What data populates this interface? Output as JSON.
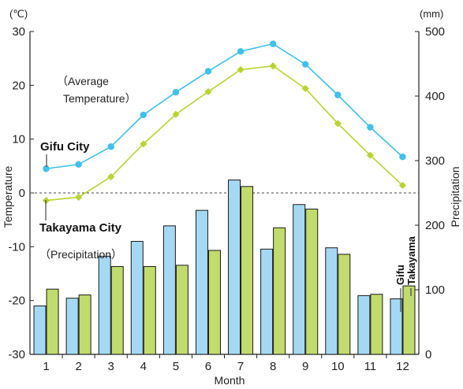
{
  "chart_data": {
    "type": "bar+line",
    "title": "",
    "x": [
      1,
      2,
      3,
      4,
      5,
      6,
      7,
      8,
      9,
      10,
      11,
      12
    ],
    "xlabel": "Month",
    "y_left": {
      "label": "Temperature",
      "unit": "(℃)",
      "range": [
        -30,
        30
      ],
      "ticks": [
        -30,
        -20,
        -10,
        0,
        10,
        20,
        30
      ]
    },
    "y_right": {
      "label": "Precipitation",
      "unit": "(mm)",
      "range": [
        0,
        500
      ],
      "ticks": [
        0,
        100,
        200,
        300,
        400,
        500
      ]
    },
    "temperature": {
      "group_label": "（Average Temperature）",
      "group_label_lines": [
        "（Average",
        "Temperature）"
      ],
      "series": [
        {
          "name": "Gifu City",
          "color": "#3ec1ea",
          "marker": "circle",
          "values": [
            4.5,
            5.3,
            8.6,
            14.5,
            18.7,
            22.6,
            26.3,
            27.7,
            23.9,
            18.2,
            12.2,
            6.7
          ]
        },
        {
          "name": "Takayama City",
          "color": "#b7d432",
          "marker": "diamond",
          "values": [
            -1.4,
            -0.8,
            3.0,
            9.1,
            14.6,
            18.8,
            22.9,
            23.6,
            19.4,
            12.9,
            7.0,
            1.4
          ]
        }
      ]
    },
    "precipitation": {
      "group_label": "（Precipitation）",
      "series": [
        {
          "name": "Gifu",
          "color": "#a5d9f3",
          "stroke": "#1a1a1a",
          "values": [
            75,
            87,
            152,
            175,
            199,
            223,
            270,
            163,
            232,
            165,
            91,
            86
          ]
        },
        {
          "name": "Takayama",
          "color": "#c1db6c",
          "stroke": "#1a1a1a",
          "values": [
            101,
            92,
            136,
            136,
            138,
            161,
            260,
            196,
            225,
            155,
            93,
            106
          ]
        }
      ]
    },
    "zero_line": "dashed",
    "grid": false
  }
}
